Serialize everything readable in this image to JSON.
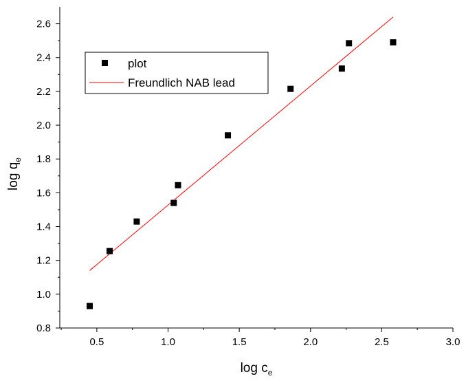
{
  "chart_data": {
    "type": "scatter",
    "title": "",
    "xlabel": {
      "main": "log c",
      "sub": "e"
    },
    "ylabel": {
      "main": "log q",
      "sub": "e"
    },
    "xlim": [
      0.24,
      3.0
    ],
    "ylim": [
      0.8,
      2.7
    ],
    "x_ticks": [
      0.5,
      1.0,
      1.5,
      2.0,
      2.5,
      3.0
    ],
    "x_tick_labels": [
      "0.5",
      "1.0",
      "1.5",
      "2.0",
      "2.5",
      "3.0"
    ],
    "y_ticks": [
      0.8,
      1.0,
      1.2,
      1.4,
      1.6,
      1.8,
      2.0,
      2.2,
      2.4,
      2.6
    ],
    "y_tick_labels": [
      "0.8",
      "1.0",
      "1.2",
      "1.4",
      "1.6",
      "1.8",
      "2.0",
      "2.2",
      "2.4",
      "2.6"
    ],
    "grid": false,
    "legend_position": "top-left",
    "series": [
      {
        "name": "plot",
        "kind": "scatter",
        "marker": "square",
        "color": "#000000",
        "x": [
          0.45,
          0.59,
          0.78,
          1.04,
          1.07,
          1.42,
          1.86,
          2.22,
          2.27,
          2.58
        ],
        "y": [
          0.93,
          1.255,
          1.43,
          1.54,
          1.645,
          1.94,
          2.215,
          2.335,
          2.485,
          2.49
        ]
      },
      {
        "name": "Freundlich NAB lead",
        "kind": "line",
        "color": "#ff0000",
        "x": [
          0.45,
          2.58
        ],
        "y": [
          1.14,
          2.64
        ]
      }
    ]
  }
}
